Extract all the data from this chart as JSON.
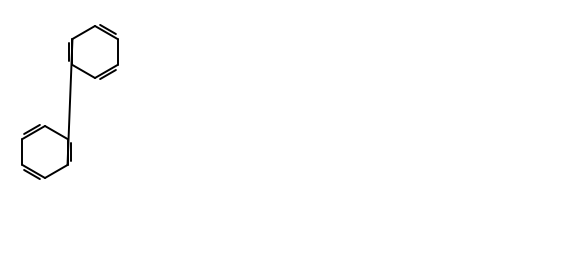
{
  "bg": "#ffffff",
  "lc": "#000000",
  "lw": 1.4,
  "fs": 8.5,
  "fw": 5.74,
  "fh": 2.56,
  "dpi": 100
}
